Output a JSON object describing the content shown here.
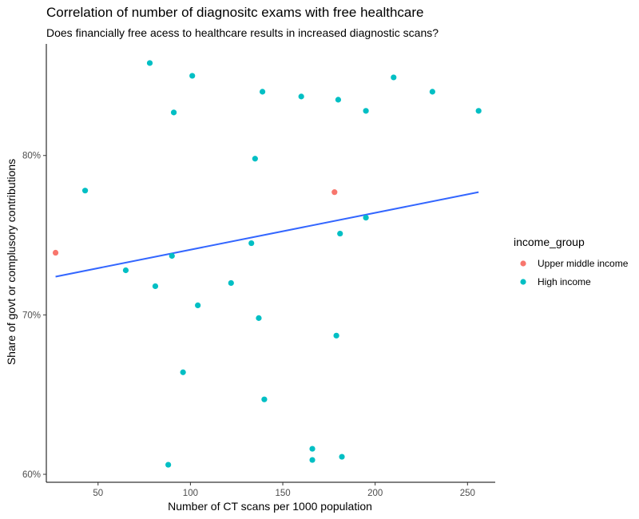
{
  "chart_data": {
    "type": "scatter",
    "title": "Correlation of number of diagnositc exams with free healthcare",
    "subtitle": "Does financially free acess to healthcare results in increased diagnostic scans?",
    "xlabel": "Number of CT scans per 1000 population",
    "ylabel": "Share of govt or complusory contributions",
    "xlim": [
      22,
      265
    ],
    "ylim": [
      0.595,
      0.87
    ],
    "x_ticks": [
      50,
      100,
      150,
      200,
      250
    ],
    "x_tick_labels": [
      "50",
      "100",
      "150",
      "200",
      "250"
    ],
    "y_ticks": [
      0.6,
      0.7,
      0.8
    ],
    "y_tick_labels": [
      "60%",
      "70%",
      "80%"
    ],
    "grid": false,
    "legend": {
      "title": "income_group",
      "position": "right",
      "entries": [
        {
          "label": "Upper middle income",
          "color": "#F8766D"
        },
        {
          "label": "High income",
          "color": "#00BFC4"
        }
      ]
    },
    "trend_line": {
      "color": "#3366FF",
      "x": [
        27,
        256
      ],
      "y": [
        0.724,
        0.777
      ]
    },
    "series": [
      {
        "name": "Upper middle income",
        "color": "#F8766D",
        "points": [
          [
            27,
            0.739
          ],
          [
            178,
            0.777
          ]
        ]
      },
      {
        "name": "High income",
        "color": "#00BFC4",
        "points": [
          [
            43,
            0.778
          ],
          [
            65,
            0.728
          ],
          [
            78,
            0.858
          ],
          [
            81,
            0.718
          ],
          [
            88,
            0.606
          ],
          [
            90,
            0.737
          ],
          [
            91,
            0.827
          ],
          [
            96,
            0.664
          ],
          [
            101,
            0.85
          ],
          [
            104,
            0.706
          ],
          [
            122,
            0.72
          ],
          [
            133,
            0.745
          ],
          [
            135,
            0.798
          ],
          [
            137,
            0.698
          ],
          [
            139,
            0.84
          ],
          [
            140,
            0.647
          ],
          [
            160,
            0.837
          ],
          [
            166,
            0.616
          ],
          [
            166,
            0.609
          ],
          [
            179,
            0.687
          ],
          [
            180,
            0.835
          ],
          [
            181,
            0.751
          ],
          [
            182,
            0.611
          ],
          [
            195,
            0.828
          ],
          [
            195,
            0.761
          ],
          [
            210,
            0.849
          ],
          [
            231,
            0.84
          ],
          [
            256,
            0.828
          ]
        ]
      }
    ]
  }
}
